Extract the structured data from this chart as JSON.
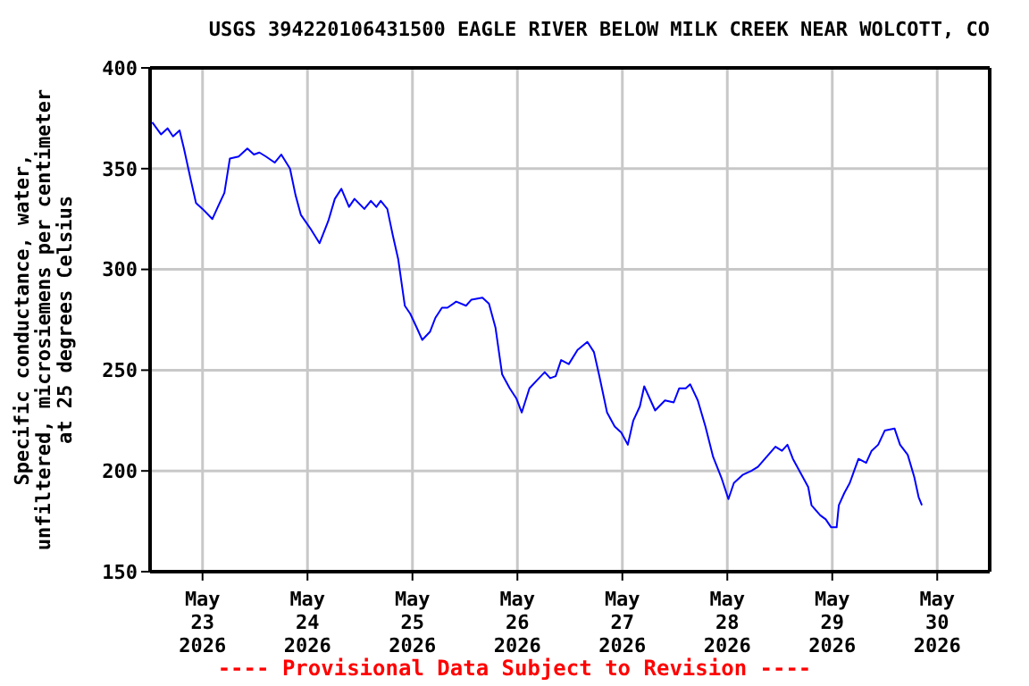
{
  "chart_data": {
    "type": "line",
    "title": "USGS 394220106431500 EAGLE RIVER BELOW MILK CREEK NEAR WOLCOTT, CO",
    "ylabel": "Specific conductance, water,\nunfiltered, microsiemens per centimeter\nat 25 degrees Celsius",
    "annotations": [
      "---- Provisional Data Subject to Revision ----"
    ],
    "x": [
      "2026-05-22T12:30",
      "2026-05-22T14:30",
      "2026-05-22T16:00",
      "2026-05-22T17:15",
      "2026-05-22T18:45",
      "2026-05-22T19:45",
      "2026-05-22T21:15",
      "2026-05-22T22:30",
      "2026-05-23T00:00",
      "2026-05-23T02:15",
      "2026-05-23T03:30",
      "2026-05-23T05:00",
      "2026-05-23T06:15",
      "2026-05-23T08:15",
      "2026-05-23T10:15",
      "2026-05-23T11:45",
      "2026-05-23T13:00",
      "2026-05-23T14:30",
      "2026-05-23T16:30",
      "2026-05-23T18:00",
      "2026-05-23T20:00",
      "2026-05-23T21:15",
      "2026-05-23T22:30",
      "2026-05-24T00:45",
      "2026-05-24T02:45",
      "2026-05-24T04:45",
      "2026-05-24T06:15",
      "2026-05-24T07:45",
      "2026-05-24T09:30",
      "2026-05-24T10:45",
      "2026-05-24T13:00",
      "2026-05-24T14:30",
      "2026-05-24T15:45",
      "2026-05-24T16:45",
      "2026-05-24T18:15",
      "2026-05-24T19:30",
      "2026-05-24T20:45",
      "2026-05-24T22:15",
      "2026-05-24T23:30",
      "2026-05-25T01:00",
      "2026-05-25T02:15",
      "2026-05-25T04:00",
      "2026-05-25T05:15",
      "2026-05-25T06:45",
      "2026-05-25T08:00",
      "2026-05-25T10:00",
      "2026-05-25T12:15",
      "2026-05-25T13:30",
      "2026-05-25T16:00",
      "2026-05-25T17:30",
      "2026-05-25T19:00",
      "2026-05-25T20:30",
      "2026-05-25T22:15",
      "2026-05-25T23:45",
      "2026-05-26T01:00",
      "2026-05-26T02:45",
      "2026-05-26T04:30",
      "2026-05-26T06:15",
      "2026-05-26T07:30",
      "2026-05-26T08:45",
      "2026-05-26T10:00",
      "2026-05-26T11:45",
      "2026-05-26T13:45",
      "2026-05-26T16:00",
      "2026-05-26T17:30",
      "2026-05-26T18:45",
      "2026-05-26T20:30",
      "2026-05-26T22:15",
      "2026-05-26T23:45",
      "2026-05-27T01:15",
      "2026-05-27T02:30",
      "2026-05-27T04:00",
      "2026-05-27T05:00",
      "2026-05-27T06:15",
      "2026-05-27T07:30",
      "2026-05-27T09:45",
      "2026-05-27T11:45",
      "2026-05-27T13:00",
      "2026-05-27T14:30",
      "2026-05-27T15:30",
      "2026-05-27T17:15",
      "2026-05-27T19:00",
      "2026-05-27T20:45",
      "2026-05-27T22:45",
      "2026-05-28T00:15",
      "2026-05-28T01:30",
      "2026-05-28T03:30",
      "2026-05-28T05:30",
      "2026-05-28T07:00",
      "2026-05-28T09:00",
      "2026-05-28T11:00",
      "2026-05-28T12:30",
      "2026-05-28T13:45",
      "2026-05-28T15:00",
      "2026-05-28T17:00",
      "2026-05-28T18:30",
      "2026-05-28T19:15",
      "2026-05-28T21:15",
      "2026-05-28T22:30",
      "2026-05-28T23:45",
      "2026-05-29T01:00",
      "2026-05-29T01:30",
      "2026-05-29T02:45",
      "2026-05-29T04:00",
      "2026-05-29T05:00",
      "2026-05-29T06:00",
      "2026-05-29T07:45",
      "2026-05-29T09:00",
      "2026-05-29T10:30",
      "2026-05-29T12:00",
      "2026-05-29T14:15",
      "2026-05-29T15:30",
      "2026-05-29T17:15",
      "2026-05-29T18:45",
      "2026-05-29T19:45",
      "2026-05-29T20:30"
    ],
    "series": [
      {
        "color": "#0000ff",
        "values": [
          373,
          367,
          370,
          366,
          369,
          360,
          345,
          333,
          330,
          325,
          331,
          338,
          355,
          356,
          360,
          357,
          358,
          356,
          353,
          357,
          350,
          337,
          327,
          320,
          313,
          324,
          335,
          340,
          331,
          335,
          330,
          334,
          331,
          334,
          330,
          317,
          305,
          282,
          278,
          271,
          265,
          269,
          276,
          281,
          281,
          284,
          282,
          285,
          286,
          283,
          271,
          248,
          241,
          236,
          229,
          241,
          245,
          249,
          246,
          247,
          255,
          253,
          260,
          264,
          259,
          247,
          229,
          222,
          219,
          213,
          225,
          232,
          242,
          236,
          230,
          235,
          234,
          241,
          241,
          243,
          235,
          222,
          207,
          196,
          186,
          194,
          198,
          200,
          202,
          207,
          212,
          210,
          213,
          206,
          198,
          192,
          183,
          178,
          176,
          172,
          172,
          183,
          189,
          194,
          200,
          206,
          204,
          210,
          213,
          220,
          221,
          213,
          208,
          197,
          187,
          183
        ]
      }
    ],
    "xlim": [
      "2026-05-22T12:00",
      "2026-05-30T12:00"
    ],
    "xticks": [
      {
        "value": "2026-05-23",
        "label": "May\n23\n2026"
      },
      {
        "value": "2026-05-24",
        "label": "May\n24\n2026"
      },
      {
        "value": "2026-05-25",
        "label": "May\n25\n2026"
      },
      {
        "value": "2026-05-26",
        "label": "May\n26\n2026"
      },
      {
        "value": "2026-05-27",
        "label": "May\n27\n2026"
      },
      {
        "value": "2026-05-28",
        "label": "May\n28\n2026"
      },
      {
        "value": "2026-05-29",
        "label": "May\n29\n2026"
      },
      {
        "value": "2026-05-30",
        "label": "May\n30\n2026"
      }
    ],
    "ylim": [
      150,
      400
    ],
    "yticks": [
      150,
      200,
      250,
      300,
      350,
      400
    ],
    "grid": true,
    "legend": false
  }
}
